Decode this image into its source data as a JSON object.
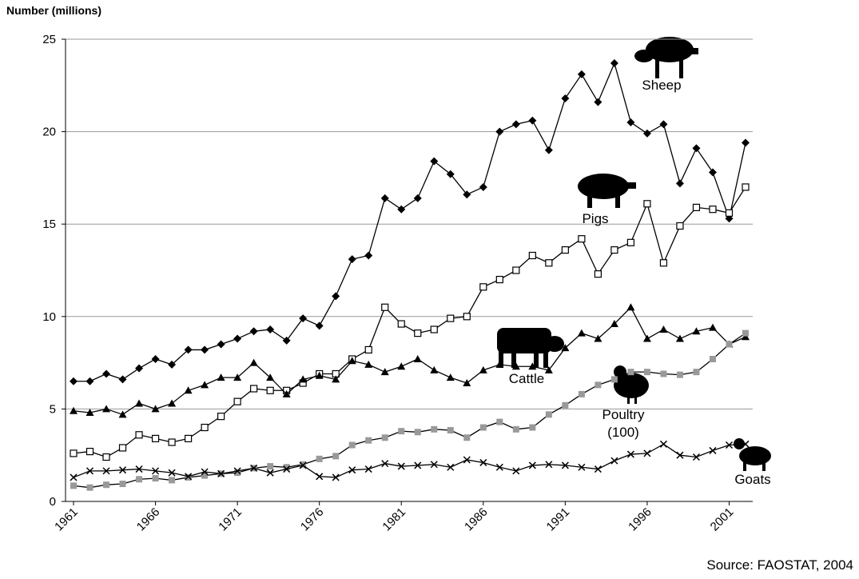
{
  "chart_data": {
    "type": "line",
    "y_label": "Number (millions)",
    "source": "Source: FAOSTAT, 2004",
    "x": [
      1961,
      1962,
      1963,
      1964,
      1965,
      1966,
      1967,
      1968,
      1969,
      1970,
      1971,
      1972,
      1973,
      1974,
      1975,
      1976,
      1977,
      1978,
      1979,
      1980,
      1981,
      1982,
      1983,
      1984,
      1985,
      1986,
      1987,
      1988,
      1989,
      1990,
      1991,
      1992,
      1993,
      1994,
      1995,
      1996,
      1997,
      1998,
      1999,
      2000,
      2001,
      2002
    ],
    "xlim": [
      1961,
      2002
    ],
    "xticks": [
      1961,
      1966,
      1971,
      1976,
      1981,
      1986,
      1991,
      1996,
      2001
    ],
    "ylim": [
      0,
      25
    ],
    "yticks": [
      0,
      5,
      10,
      15,
      20,
      25
    ],
    "grid": true,
    "series": [
      {
        "name": "Sheep",
        "color": "#000000",
        "marker": "diamond",
        "values": [
          6.5,
          6.5,
          6.9,
          6.6,
          7.2,
          7.7,
          7.4,
          8.2,
          8.2,
          8.5,
          8.8,
          9.2,
          9.3,
          8.7,
          9.9,
          9.5,
          11.1,
          13.1,
          13.3,
          16.4,
          15.8,
          16.4,
          18.4,
          17.7,
          16.6,
          17.0,
          20.0,
          20.4,
          20.6,
          19.0,
          21.8,
          23.1,
          21.6,
          23.7,
          20.5,
          19.9,
          20.4,
          17.2,
          19.1,
          17.8,
          15.3,
          19.4
        ]
      },
      {
        "name": "Pigs",
        "color": "#000000",
        "marker": "open-square",
        "values": [
          2.6,
          2.7,
          2.4,
          2.9,
          3.6,
          3.4,
          3.2,
          3.4,
          4.0,
          4.6,
          5.4,
          6.1,
          6.0,
          6.0,
          6.4,
          6.9,
          6.9,
          7.7,
          8.2,
          10.5,
          9.6,
          9.1,
          9.3,
          9.9,
          10.0,
          11.6,
          12.0,
          12.5,
          13.3,
          12.9,
          13.6,
          14.2,
          12.3,
          13.6,
          14.0,
          16.1,
          12.9,
          14.9,
          15.9,
          15.8,
          15.6,
          17.0
        ]
      },
      {
        "name": "Cattle",
        "color": "#000000",
        "marker": "triangle",
        "values": [
          4.9,
          4.8,
          5.0,
          4.7,
          5.3,
          5.0,
          5.3,
          6.0,
          6.3,
          6.7,
          6.7,
          7.5,
          6.7,
          5.8,
          6.6,
          6.8,
          6.6,
          7.6,
          7.4,
          7.0,
          7.3,
          7.7,
          7.1,
          6.7,
          6.4,
          7.1,
          7.4,
          7.3,
          7.3,
          7.1,
          8.3,
          9.1,
          8.8,
          9.6,
          10.5,
          8.8,
          9.3,
          8.8,
          9.2,
          9.4,
          8.5,
          8.9
        ]
      },
      {
        "name": "Poultry (100)",
        "color": "#999999",
        "marker": "square",
        "values": [
          0.85,
          0.75,
          0.9,
          0.95,
          1.2,
          1.25,
          1.15,
          1.3,
          1.4,
          1.5,
          1.55,
          1.8,
          1.9,
          1.85,
          2.0,
          2.3,
          2.45,
          3.05,
          3.3,
          3.45,
          3.8,
          3.75,
          3.9,
          3.85,
          3.45,
          4.0,
          4.3,
          3.9,
          4.0,
          4.7,
          5.2,
          5.8,
          6.3,
          6.6,
          7.0,
          7.0,
          6.9,
          6.85,
          7.0,
          7.7,
          8.5,
          9.1
        ]
      },
      {
        "name": "Goats",
        "color": "#000000",
        "marker": "cross",
        "values": [
          1.3,
          1.65,
          1.65,
          1.7,
          1.75,
          1.65,
          1.55,
          1.35,
          1.6,
          1.5,
          1.65,
          1.8,
          1.55,
          1.75,
          1.95,
          1.35,
          1.3,
          1.7,
          1.75,
          2.05,
          1.9,
          1.95,
          2.0,
          1.85,
          2.25,
          2.1,
          1.85,
          1.65,
          1.95,
          2.0,
          1.95,
          1.85,
          1.75,
          2.2,
          2.55,
          2.6,
          3.1,
          2.5,
          2.4,
          2.75,
          3.05,
          3.1
        ]
      }
    ]
  }
}
